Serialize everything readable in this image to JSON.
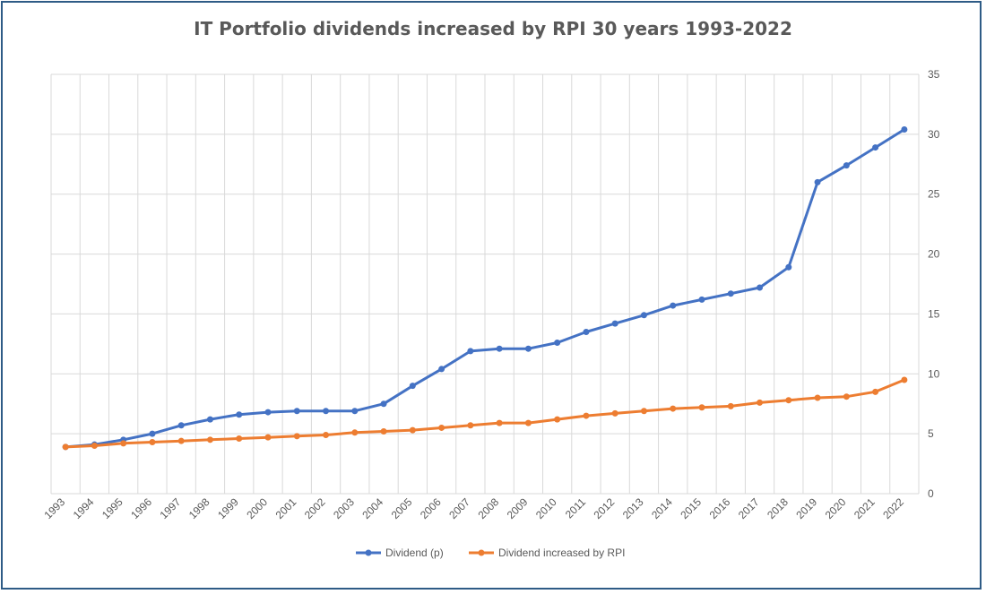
{
  "chart_data": {
    "type": "line",
    "title": "IT Portfolio dividends increased by RPI 30 years 1993-2022",
    "xlabel": "",
    "ylabel": "",
    "ylim": [
      0,
      35
    ],
    "yticks": [
      0,
      5,
      10,
      15,
      20,
      25,
      30,
      35
    ],
    "y_axis_position": "right",
    "grid": true,
    "legend_position": "bottom",
    "x": [
      "1993",
      "1994",
      "1995",
      "1996",
      "1997",
      "1998",
      "1999",
      "2000",
      "2001",
      "2002",
      "2003",
      "2004",
      "2005",
      "2006",
      "2007",
      "2008",
      "2009",
      "2010",
      "2011",
      "2012",
      "2013",
      "2014",
      "2015",
      "2016",
      "2017",
      "2018",
      "2019",
      "2020",
      "2021",
      "2022"
    ],
    "series": [
      {
        "name": "Dividend (p)",
        "color": "#4472c4",
        "values": [
          3.9,
          4.1,
          4.5,
          5.0,
          5.7,
          6.2,
          6.6,
          6.8,
          6.9,
          6.9,
          6.9,
          7.5,
          9.0,
          10.4,
          11.9,
          12.1,
          12.1,
          12.6,
          13.5,
          14.2,
          14.9,
          15.7,
          16.2,
          16.7,
          17.2,
          18.9,
          26.0,
          27.4,
          28.9,
          30.4
        ]
      },
      {
        "name": "Dividend increased by RPI",
        "color": "#ed7d31",
        "values": [
          3.9,
          4.0,
          4.2,
          4.3,
          4.4,
          4.5,
          4.6,
          4.7,
          4.8,
          4.9,
          5.1,
          5.2,
          5.3,
          5.5,
          5.7,
          5.9,
          5.9,
          6.2,
          6.5,
          6.7,
          6.9,
          7.1,
          7.2,
          7.3,
          7.6,
          7.8,
          8.0,
          8.1,
          8.5,
          9.5
        ]
      }
    ]
  }
}
